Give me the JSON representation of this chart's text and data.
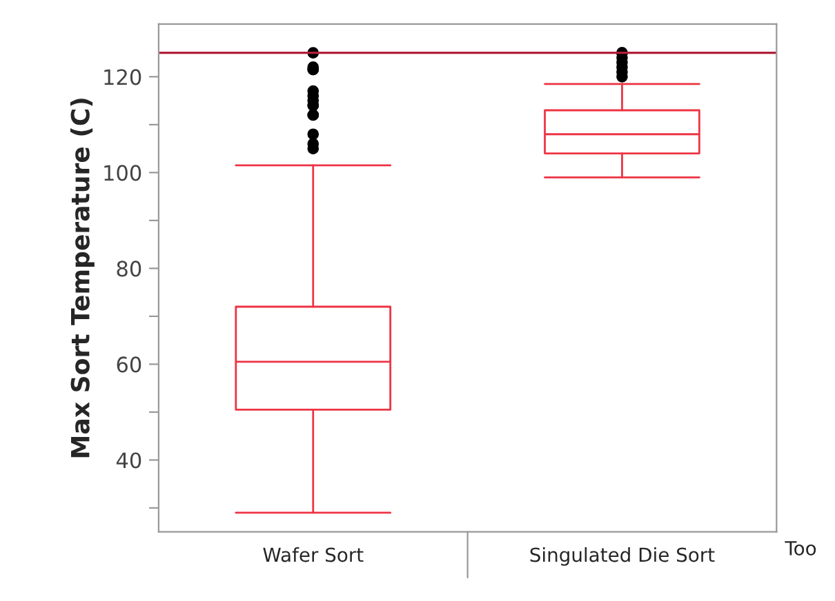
{
  "chart_data": {
    "type": "box",
    "ylabel": "Max Sort Temperature (C)",
    "categories": [
      "Wafer Sort",
      "Singulated Die Sort"
    ],
    "series": [
      {
        "color": "#ee3344",
        "boxes": [
          {
            "low": 29,
            "q1": 50.5,
            "median": 60.5,
            "q3": 72,
            "high": 101.5,
            "outliers": [
              105,
              106,
              108,
              112,
              112,
              114,
              114,
              115,
              116,
              117,
              121.5,
              121.5,
              122,
              125
            ]
          },
          {
            "low": 99,
            "q1": 104,
            "median": 108,
            "q3": 113,
            "high": 118.5,
            "outliers": [
              120,
              121,
              122,
              123,
              124,
              125,
              125
            ]
          }
        ]
      }
    ],
    "ylim": [
      25,
      131
    ],
    "yticks": [
      {
        "value": 30,
        "label": null
      },
      40,
      {
        "value": 50,
        "label": null
      },
      60,
      {
        "value": 70,
        "label": null
      },
      80,
      {
        "value": 90,
        "label": null
      },
      100,
      {
        "value": 110,
        "label": null
      },
      120
    ],
    "ref_lines": [
      {
        "axis": "y",
        "value": 125,
        "color": "#b0203a"
      }
    ],
    "annotations": [
      "Too"
    ],
    "grid": false
  }
}
